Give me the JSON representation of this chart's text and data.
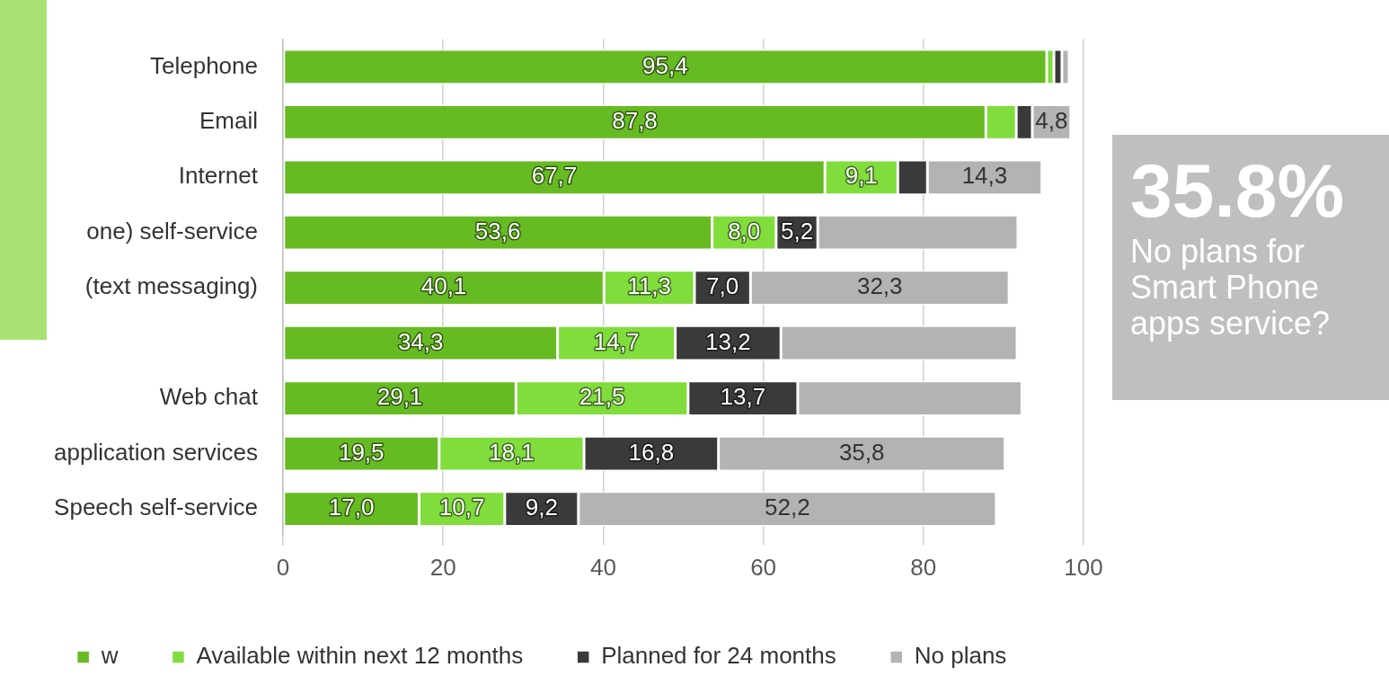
{
  "chart_data": {
    "type": "bar",
    "orientation": "horizontal",
    "stacked": true,
    "categories": [
      "Telephone",
      "Email",
      "Internet",
      "one) self-service",
      "(text messaging)",
      null,
      "Web chat",
      "application services",
      "Speech self-service"
    ],
    "series": [
      {
        "name": "w",
        "color": "#66bb22",
        "values": [
          95.4,
          87.8,
          67.7,
          53.6,
          40.1,
          34.3,
          29.1,
          19.5,
          17.0
        ],
        "value_labels": [
          "95,4",
          "87,8",
          "67,7",
          "53,6",
          "40,1",
          "34,3",
          "29,1",
          "19,5",
          "17,0"
        ]
      },
      {
        "name": "Available within next 12 months",
        "color": "#80dd3c",
        "values": [
          0.9,
          3.8,
          9.1,
          8.0,
          11.3,
          14.7,
          21.5,
          18.1,
          10.7
        ],
        "value_labels": [
          null,
          null,
          "9,1",
          "8,0",
          "11,3",
          "14,7",
          "21,5",
          "18,1",
          "10,7"
        ]
      },
      {
        "name": "Planned for 24 months",
        "color": "#3a3a3a",
        "values": [
          1.0,
          2.0,
          3.7,
          5.2,
          7.0,
          13.2,
          13.7,
          16.8,
          9.2
        ],
        "value_labels": [
          null,
          null,
          null,
          "5,2",
          "7,0",
          "13,2",
          "13,7",
          "16,8",
          "9,2"
        ]
      },
      {
        "name": "No plans",
        "color": "#b3b3b3",
        "values": [
          0.9,
          4.8,
          14.3,
          25,
          32.3,
          29.5,
          28,
          35.8,
          52.2
        ],
        "value_labels": [
          null,
          "4,8",
          "14,3",
          null,
          "32,3",
          null,
          null,
          "35,8",
          "52,2"
        ]
      }
    ],
    "xlim": [
      0,
      100
    ],
    "xticks": [
      0,
      20,
      40,
      60,
      80,
      100
    ],
    "grid": "x",
    "legend": "bottom",
    "annotations": [
      "35.8%",
      "No plans for Smart Phone apps service?"
    ]
  }
}
